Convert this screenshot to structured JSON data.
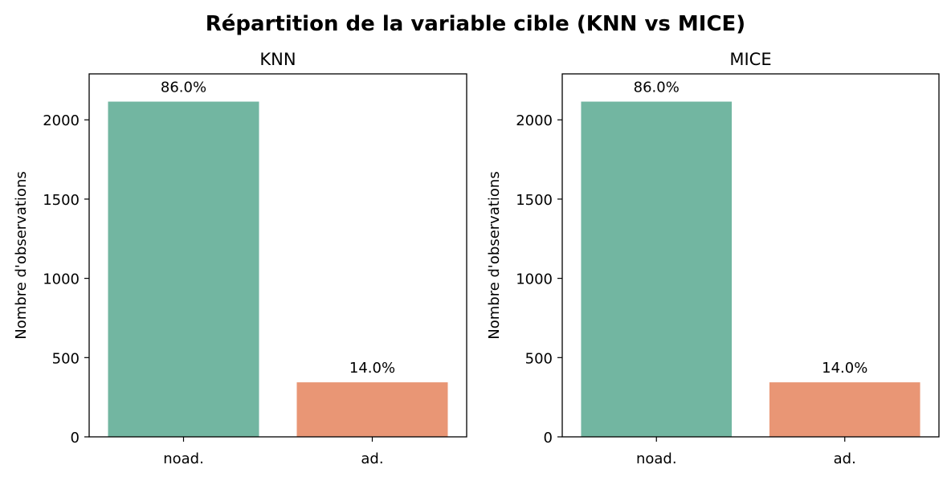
{
  "figure": {
    "title": "Répartition de la variable cible (KNN vs MICE)"
  },
  "chart_data": [
    {
      "type": "bar",
      "title": "KNN",
      "xlabel": "",
      "ylabel": "Nombre d'observations",
      "categories": [
        "noad.",
        "ad."
      ],
      "values": [
        2115,
        344
      ],
      "data_labels": [
        "86.0%",
        "14.0%"
      ],
      "colors": [
        "#72b6a1",
        "#e99675"
      ],
      "ylim": [
        0,
        2290
      ],
      "yticks": [
        0,
        500,
        1000,
        1500,
        2000
      ],
      "grid": false
    },
    {
      "type": "bar",
      "title": "MICE",
      "xlabel": "",
      "ylabel": "Nombre d'observations",
      "categories": [
        "noad.",
        "ad."
      ],
      "values": [
        2115,
        344
      ],
      "data_labels": [
        "86.0%",
        "14.0%"
      ],
      "colors": [
        "#72b6a1",
        "#e99675"
      ],
      "ylim": [
        0,
        2290
      ],
      "yticks": [
        0,
        500,
        1000,
        1500,
        2000
      ],
      "grid": false
    }
  ]
}
